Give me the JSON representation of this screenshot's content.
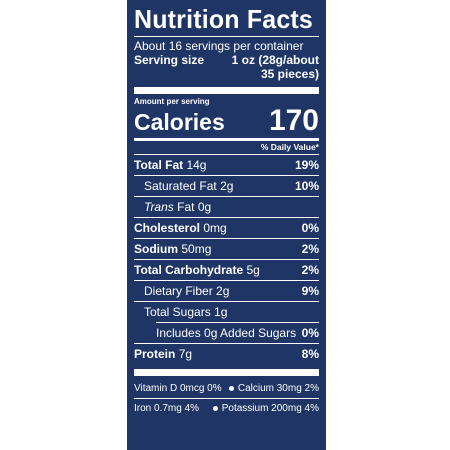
{
  "label": {
    "title": "Nutrition Facts",
    "servings_per_container": "About 16 servings per container",
    "serving_size_label": "Serving size",
    "serving_size_value_line1": "1 oz (28g/about",
    "serving_size_value_line2": "35 pieces)",
    "amount_per_serving": "Amount per serving",
    "calories_label": "Calories",
    "calories_value": "170",
    "daily_value_header": "% Daily Value*",
    "colors": {
      "panel": "#1f3565",
      "text": "#ffffff"
    }
  },
  "nutrients": {
    "total_fat": {
      "name": "Total Fat",
      "amount": "14g",
      "dv": "19%"
    },
    "saturated_fat": {
      "name": "Saturated Fat",
      "amount": "2g",
      "dv": "10%"
    },
    "trans_fat": {
      "name_italic": "Trans",
      "name_rest": "Fat",
      "amount": "0g"
    },
    "cholesterol": {
      "name": "Cholesterol",
      "amount": "0mg",
      "dv": "0%"
    },
    "sodium": {
      "name": "Sodium",
      "amount": "50mg",
      "dv": "2%"
    },
    "total_carbohydrate": {
      "name": "Total Carbohydrate",
      "amount": "5g",
      "dv": "2%"
    },
    "dietary_fiber": {
      "name": "Dietary Fiber",
      "amount": "2g",
      "dv": "9%"
    },
    "total_sugars": {
      "name": "Total Sugars",
      "amount": "1g"
    },
    "added_sugars": {
      "name": "Includes 0g Added Sugars",
      "dv": "0%"
    },
    "protein": {
      "name": "Protein",
      "amount": "7g",
      "dv": "8%"
    }
  },
  "vitamins": {
    "vitamin_d": "Vitamin D 0mcg 0%",
    "calcium": "Calcium 30mg 2%",
    "iron": "Iron 0.7mg 4%",
    "potassium": "Potassium 200mg 4%"
  }
}
